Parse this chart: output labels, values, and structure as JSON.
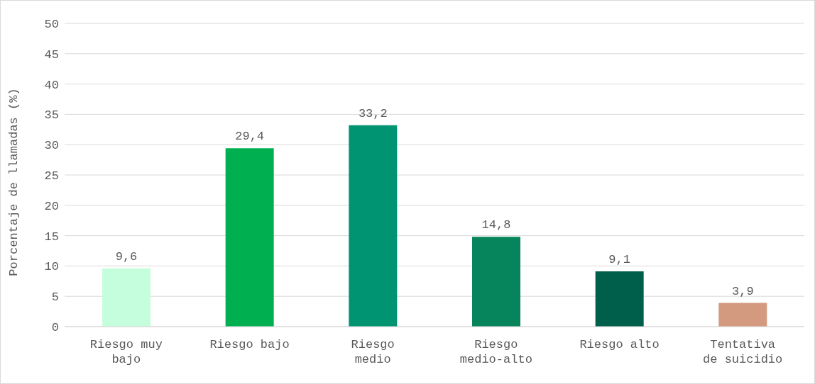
{
  "chart_data": {
    "type": "bar",
    "ylabel": "Porcentaje de llamadas (%)",
    "categories": [
      "Riesgo muy bajo",
      "Riesgo bajo",
      "Riesgo medio",
      "Riesgo medio-alto",
      "Riesgo alto",
      "Tentativa de suicidio"
    ],
    "values": [
      9.6,
      29.4,
      33.2,
      14.8,
      9.1,
      3.9
    ],
    "colors": [
      "#c5fedc",
      "#00b050",
      "#009473",
      "#06845c",
      "#005f4b",
      "#d49a80"
    ],
    "value_labels": [
      "9,6",
      "29,4",
      "33,2",
      "14,8",
      "9,1",
      "3,9"
    ],
    "ylim": [
      0,
      50
    ],
    "yticks": [
      0,
      5,
      10,
      15,
      20,
      25,
      30,
      35,
      40,
      45,
      50
    ],
    "grid": "y"
  }
}
